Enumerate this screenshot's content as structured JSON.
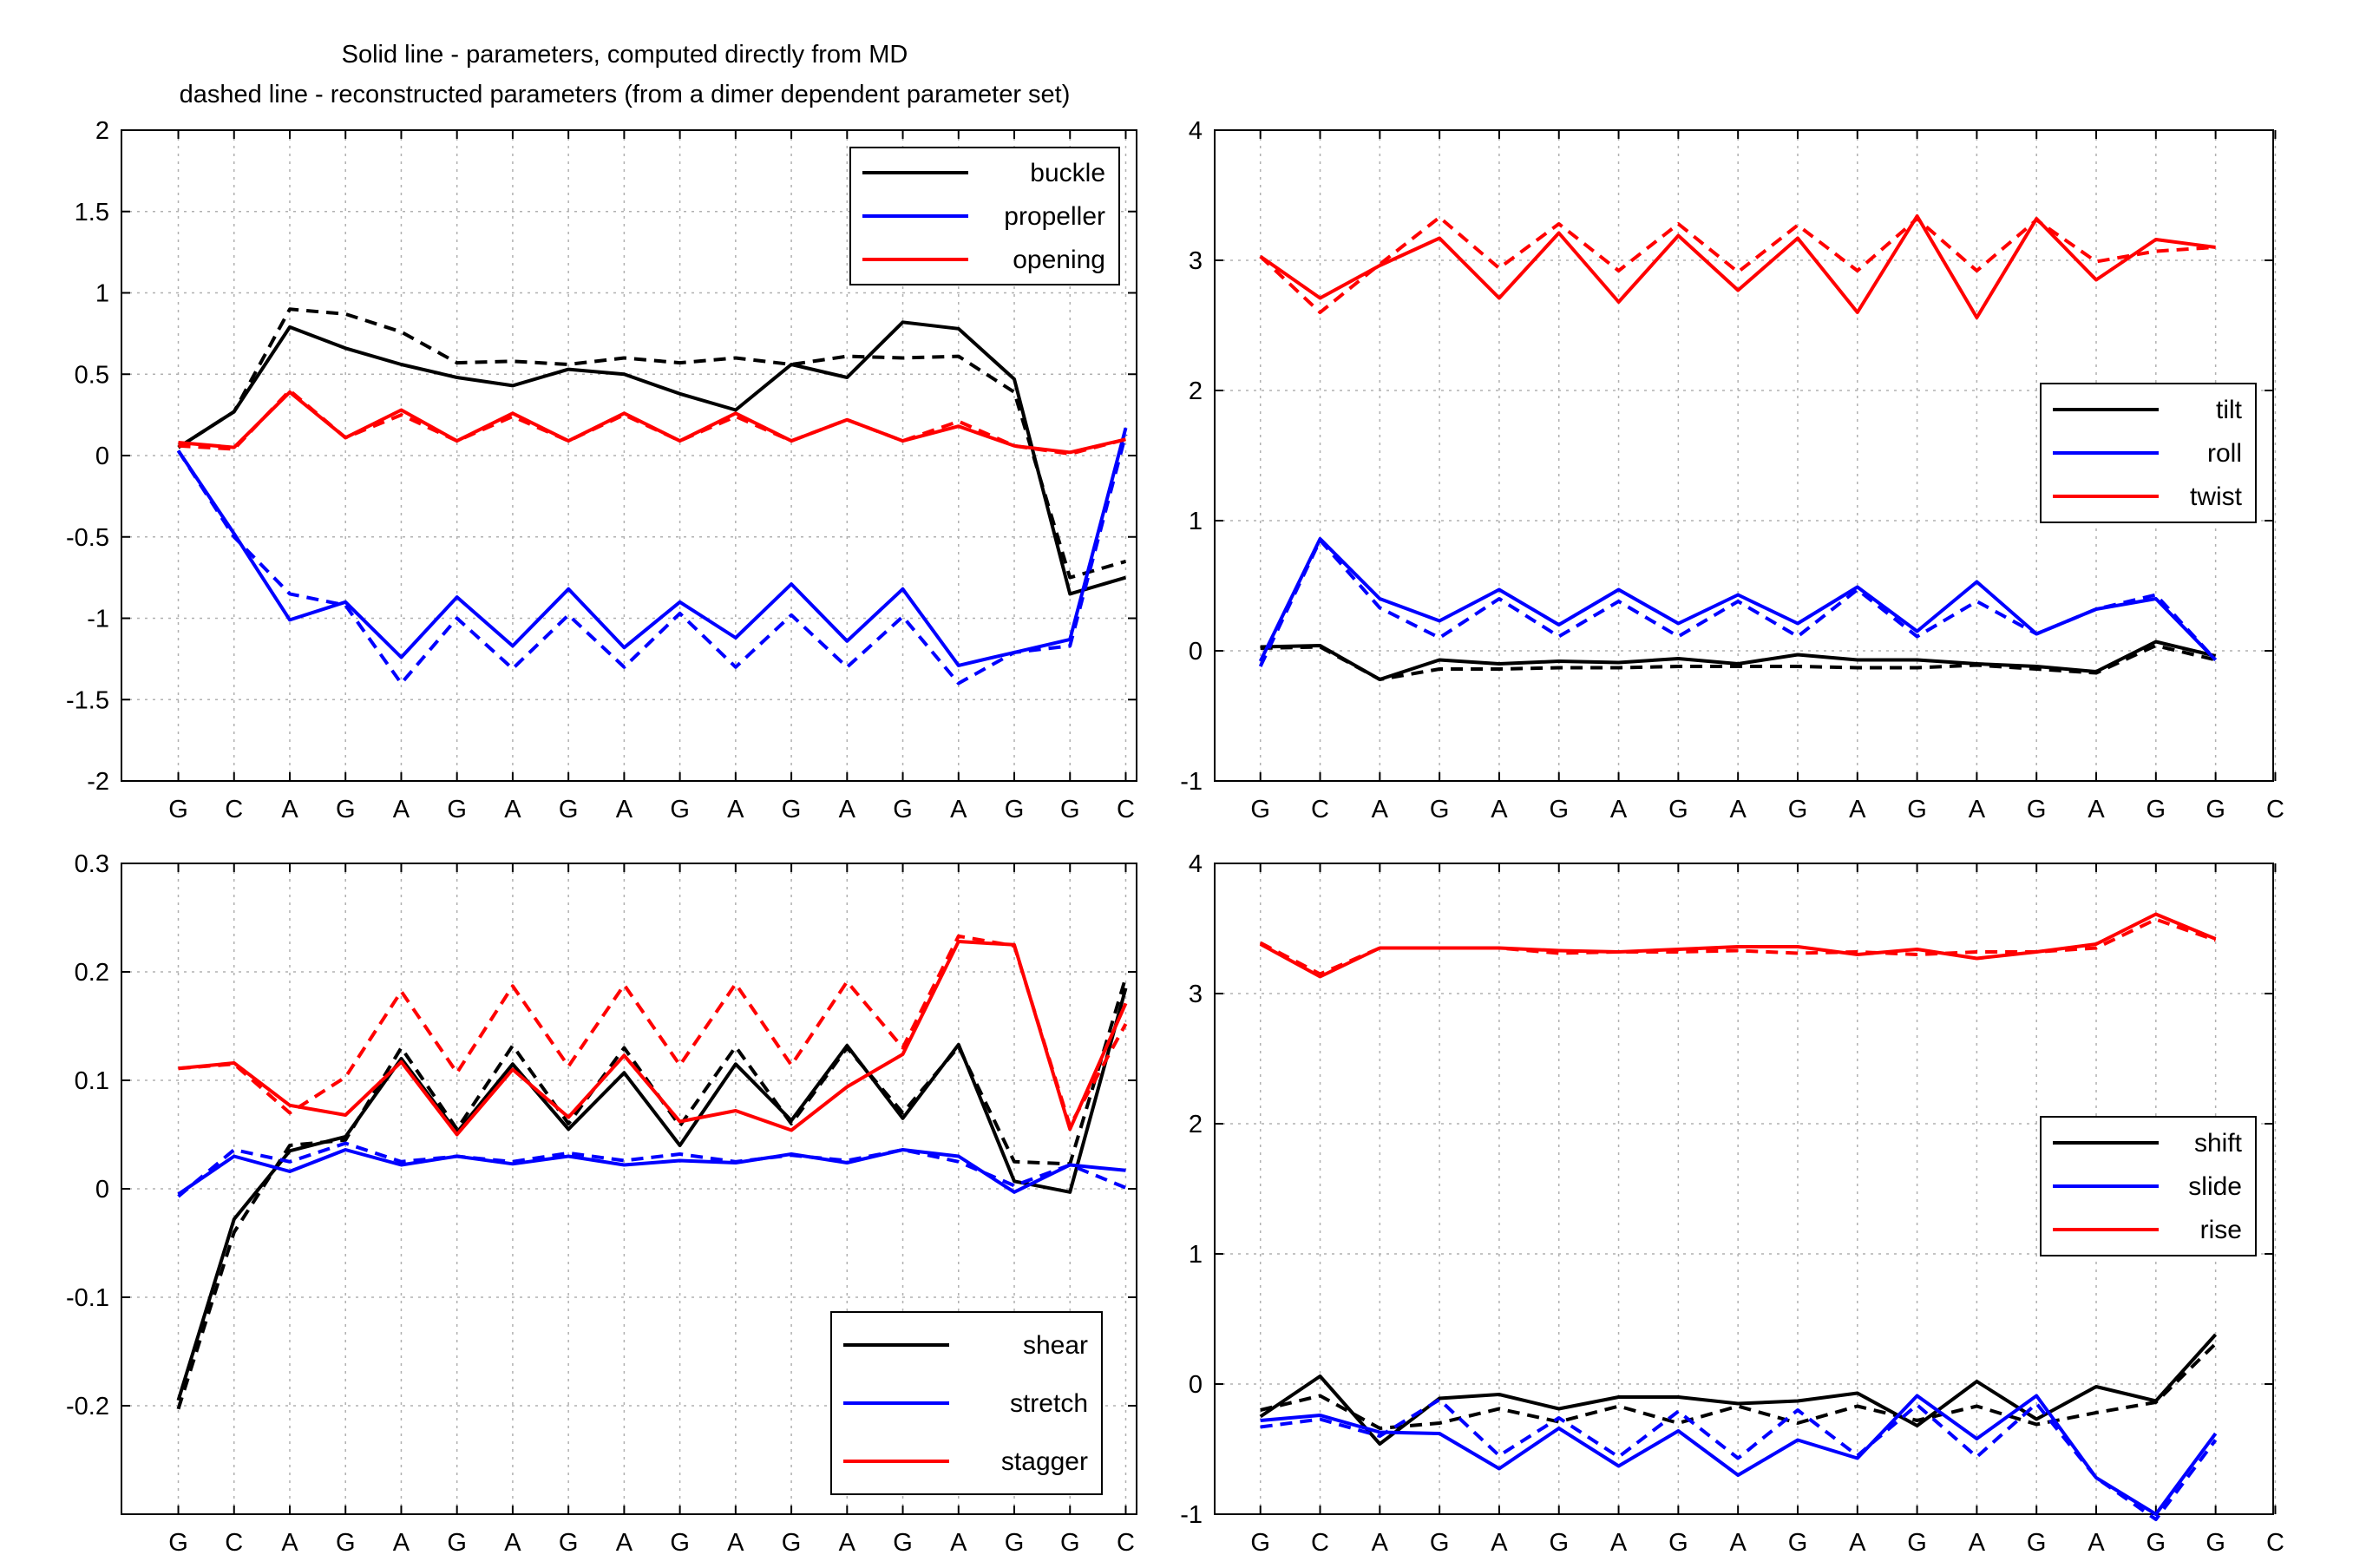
{
  "figure": {
    "title_lines": [
      "Solid line - parameters, computed directly from MD",
      "dashed line - reconstructed parameters (from a dimer dependent parameter set)"
    ]
  },
  "chart_data": [
    {
      "type": "line",
      "position": "top-left",
      "categories": [
        "G",
        "C",
        "A",
        "G",
        "A",
        "G",
        "A",
        "G",
        "A",
        "G",
        "A",
        "G",
        "A",
        "G",
        "A",
        "G",
        "G",
        "C"
      ],
      "ylim": [
        -2,
        2
      ],
      "yticks": [
        "2",
        "1.5",
        "1",
        "0.5",
        "0",
        "-0.5",
        "-1",
        "-1.5",
        "-2"
      ],
      "ytick_values": [
        2,
        1.5,
        1,
        0.5,
        0,
        -0.5,
        -1,
        -1.5,
        -2
      ],
      "grid": true,
      "legend_placement": "top-right",
      "series": [
        {
          "name": "buckle",
          "color": "#000000",
          "legend": true,
          "solid": [
            0.05,
            0.27,
            0.79,
            0.66,
            0.56,
            0.48,
            0.43,
            0.53,
            0.5,
            0.38,
            0.28,
            0.56,
            0.48,
            0.82,
            0.78,
            0.47,
            -0.85,
            -0.75
          ],
          "dashed": [
            0.05,
            0.27,
            0.9,
            0.87,
            0.76,
            0.57,
            0.58,
            0.56,
            0.6,
            0.57,
            0.6,
            0.56,
            0.61,
            0.6,
            0.61,
            0.39,
            -0.75,
            -0.65
          ]
        },
        {
          "name": "propeller",
          "color": "#0000ff",
          "legend": true,
          "solid": [
            0.03,
            -0.48,
            -1.01,
            -0.9,
            -1.24,
            -0.87,
            -1.17,
            -0.82,
            -1.18,
            -0.9,
            -1.12,
            -0.79,
            -1.14,
            -0.82,
            -1.29,
            -1.21,
            -1.13,
            0.17
          ],
          "dashed": [
            0.03,
            -0.5,
            -0.85,
            -0.92,
            -1.4,
            -1.0,
            -1.31,
            -0.98,
            -1.3,
            -0.97,
            -1.3,
            -0.98,
            -1.3,
            -0.99,
            -1.4,
            -1.21,
            -1.17,
            0.13
          ]
        },
        {
          "name": "opening",
          "color": "#ff0000",
          "legend": true,
          "solid": [
            0.08,
            0.05,
            0.39,
            0.11,
            0.28,
            0.09,
            0.26,
            0.09,
            0.26,
            0.09,
            0.26,
            0.09,
            0.22,
            0.09,
            0.18,
            0.06,
            0.02,
            0.1
          ],
          "dashed": [
            0.06,
            0.04,
            0.4,
            0.11,
            0.25,
            0.09,
            0.24,
            0.09,
            0.25,
            0.09,
            0.24,
            0.09,
            0.22,
            0.09,
            0.21,
            0.06,
            0.01,
            0.1
          ]
        }
      ]
    },
    {
      "type": "line",
      "position": "top-right",
      "categories": [
        "G",
        "C",
        "A",
        "G",
        "A",
        "G",
        "A",
        "G",
        "A",
        "G",
        "A",
        "G",
        "A",
        "G",
        "A",
        "G",
        "G",
        "C"
      ],
      "ylim": [
        -1,
        4
      ],
      "yticks": [
        "4",
        "3",
        "2",
        "1",
        "0",
        "-1"
      ],
      "ytick_values": [
        4,
        3,
        2,
        1,
        0,
        -1
      ],
      "grid": true,
      "legend_placement": "middle-right",
      "series": [
        {
          "name": "tilt",
          "color": "#000000",
          "legend": true,
          "solid": [
            0.03,
            0.04,
            -0.22,
            -0.07,
            -0.1,
            -0.08,
            -0.09,
            -0.06,
            -0.1,
            -0.03,
            -0.07,
            -0.07,
            -0.1,
            -0.12,
            -0.16,
            0.07,
            -0.04
          ],
          "dashed": [
            0.02,
            0.03,
            -0.22,
            -0.14,
            -0.14,
            -0.13,
            -0.13,
            -0.12,
            -0.12,
            -0.12,
            -0.13,
            -0.13,
            -0.11,
            -0.14,
            -0.17,
            0.04,
            -0.07
          ]
        },
        {
          "name": "roll",
          "color": "#0000ff",
          "legend": true,
          "solid": [
            -0.08,
            0.86,
            0.4,
            0.23,
            0.47,
            0.2,
            0.47,
            0.21,
            0.43,
            0.21,
            0.49,
            0.15,
            0.53,
            0.13,
            0.32,
            0.4,
            -0.07
          ],
          "dashed": [
            -0.12,
            0.85,
            0.33,
            0.1,
            0.4,
            0.11,
            0.38,
            0.11,
            0.38,
            0.11,
            0.47,
            0.11,
            0.38,
            0.13,
            0.32,
            0.43,
            -0.07
          ]
        },
        {
          "name": "twist",
          "color": "#ff0000",
          "legend": true,
          "solid": [
            3.03,
            2.71,
            2.96,
            3.17,
            2.71,
            3.21,
            2.68,
            3.19,
            2.77,
            3.17,
            2.6,
            3.34,
            2.56,
            3.32,
            2.85,
            3.16,
            3.1
          ],
          "dashed": [
            3.03,
            2.6,
            2.97,
            3.33,
            2.94,
            3.28,
            2.92,
            3.28,
            2.91,
            3.27,
            2.92,
            3.32,
            2.92,
            3.31,
            2.99,
            3.07,
            3.1
          ]
        }
      ]
    },
    {
      "type": "line",
      "position": "bottom-left",
      "categories": [
        "G",
        "C",
        "A",
        "G",
        "A",
        "G",
        "A",
        "G",
        "A",
        "G",
        "A",
        "G",
        "A",
        "G",
        "A",
        "G",
        "G",
        "C"
      ],
      "ylim": [
        -0.3,
        0.3
      ],
      "yticks": [
        "0.3",
        "0.2",
        "0.1",
        "0",
        "-0.1",
        "-0.2"
      ],
      "ytick_values": [
        0.3,
        0.2,
        0.1,
        0,
        -0.1,
        -0.2
      ],
      "grid": true,
      "legend_placement": "bottom-right",
      "series": [
        {
          "name": "shear",
          "color": "#000000",
          "legend": true,
          "solid": [
            -0.195,
            -0.028,
            0.035,
            0.048,
            0.12,
            0.052,
            0.115,
            0.055,
            0.107,
            0.04,
            0.115,
            0.063,
            0.132,
            0.065,
            0.133,
            0.007,
            -0.003,
            0.185
          ],
          "dashed": [
            -0.203,
            -0.04,
            0.04,
            0.045,
            0.13,
            0.055,
            0.132,
            0.06,
            0.13,
            0.058,
            0.131,
            0.06,
            0.13,
            0.07,
            0.131,
            0.025,
            0.023,
            0.195
          ]
        },
        {
          "name": "stretch",
          "color": "#0000ff",
          "legend": true,
          "solid": [
            -0.005,
            0.03,
            0.016,
            0.036,
            0.022,
            0.03,
            0.023,
            0.03,
            0.022,
            0.026,
            0.024,
            0.032,
            0.024,
            0.036,
            0.03,
            -0.003,
            0.022,
            0.017
          ],
          "dashed": [
            -0.007,
            0.036,
            0.025,
            0.042,
            0.025,
            0.03,
            0.025,
            0.033,
            0.026,
            0.032,
            0.025,
            0.031,
            0.026,
            0.036,
            0.025,
            0.003,
            0.022,
            0.001
          ]
        },
        {
          "name": "stagger",
          "color": "#ff0000",
          "legend": true,
          "solid": [
            0.111,
            0.116,
            0.077,
            0.068,
            0.117,
            0.05,
            0.11,
            0.066,
            0.123,
            0.062,
            0.072,
            0.054,
            0.094,
            0.124,
            0.228,
            0.225,
            0.055,
            0.171
          ],
          "dashed": [
            0.111,
            0.115,
            0.07,
            0.103,
            0.182,
            0.107,
            0.187,
            0.113,
            0.188,
            0.114,
            0.189,
            0.114,
            0.191,
            0.13,
            0.233,
            0.224,
            0.058,
            0.152
          ]
        }
      ]
    },
    {
      "type": "line",
      "position": "bottom-right",
      "categories": [
        "G",
        "C",
        "A",
        "G",
        "A",
        "G",
        "A",
        "G",
        "A",
        "G",
        "A",
        "G",
        "A",
        "G",
        "A",
        "G",
        "G",
        "C"
      ],
      "ylim": [
        -1,
        4
      ],
      "yticks": [
        "4",
        "3",
        "2",
        "1",
        "0",
        "-1"
      ],
      "ytick_values": [
        4,
        3,
        2,
        1,
        0,
        -1
      ],
      "grid": true,
      "legend_placement": "middle-right",
      "series": [
        {
          "name": "shift",
          "color": "#000000",
          "legend": true,
          "solid": [
            -0.25,
            0.06,
            -0.46,
            -0.11,
            -0.08,
            -0.19,
            -0.1,
            -0.1,
            -0.15,
            -0.13,
            -0.07,
            -0.32,
            0.02,
            -0.27,
            -0.02,
            -0.13,
            0.38
          ],
          "dashed": [
            -0.2,
            -0.09,
            -0.34,
            -0.3,
            -0.19,
            -0.29,
            -0.17,
            -0.3,
            -0.17,
            -0.3,
            -0.17,
            -0.28,
            -0.17,
            -0.31,
            -0.22,
            -0.14,
            0.31
          ]
        },
        {
          "name": "slide",
          "color": "#0000ff",
          "legend": true,
          "solid": [
            -0.28,
            -0.24,
            -0.37,
            -0.38,
            -0.65,
            -0.34,
            -0.63,
            -0.36,
            -0.7,
            -0.43,
            -0.57,
            -0.09,
            -0.42,
            -0.09,
            -0.72,
            -1.0,
            -0.38
          ],
          "dashed": [
            -0.33,
            -0.27,
            -0.4,
            -0.12,
            -0.55,
            -0.26,
            -0.56,
            -0.21,
            -0.57,
            -0.2,
            -0.55,
            -0.16,
            -0.56,
            -0.15,
            -0.72,
            -1.04,
            -0.43
          ]
        },
        {
          "name": "rise",
          "color": "#ff0000",
          "legend": true,
          "solid": [
            3.38,
            3.13,
            3.35,
            3.35,
            3.35,
            3.33,
            3.32,
            3.34,
            3.36,
            3.36,
            3.3,
            3.34,
            3.27,
            3.32,
            3.38,
            3.61,
            3.42
          ],
          "dashed": [
            3.39,
            3.15,
            3.35,
            3.35,
            3.35,
            3.31,
            3.32,
            3.32,
            3.33,
            3.31,
            3.32,
            3.3,
            3.32,
            3.32,
            3.35,
            3.57,
            3.41
          ]
        }
      ]
    }
  ]
}
